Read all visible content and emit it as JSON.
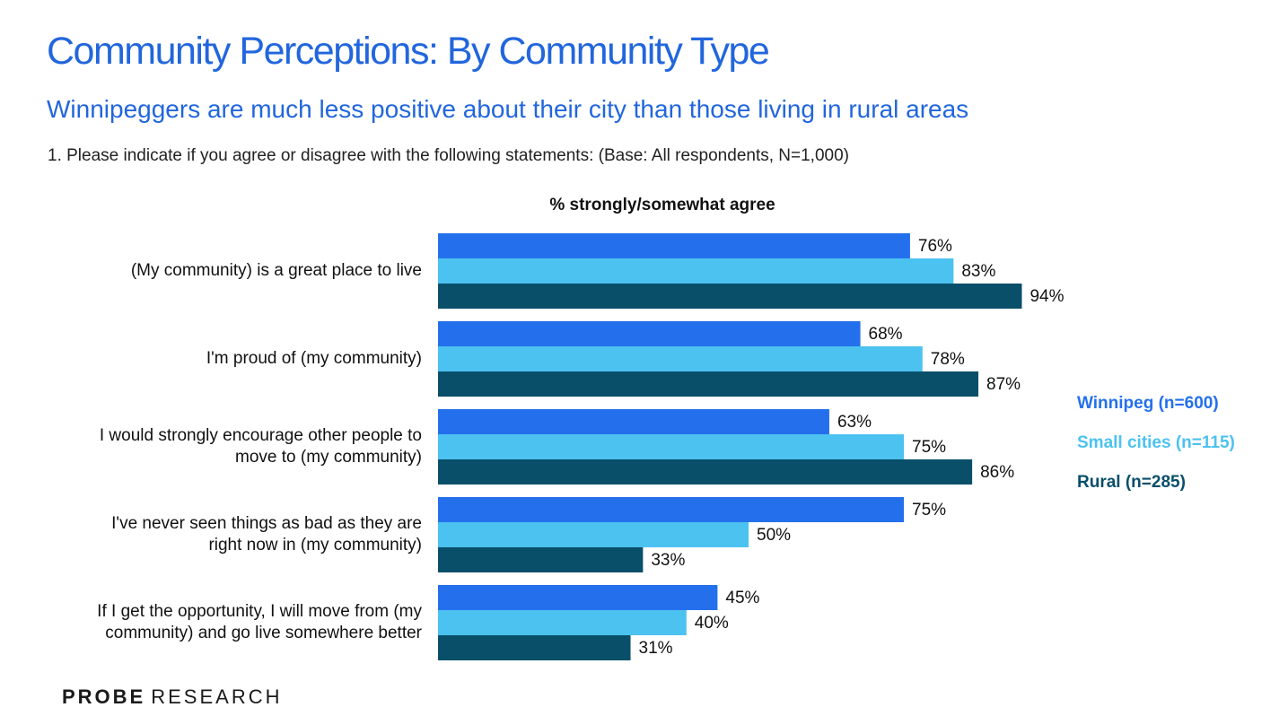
{
  "header": {
    "title": "Community Perceptions: By Community Type",
    "subtitle": "Winnipeggers are much less positive about their city than those living in rural areas",
    "question": "1. Please indicate if you agree or disagree with the following statements: (Base: All respondents, N=1,000)"
  },
  "colors": {
    "title": "#2266dd",
    "winnipeg": "#2470ec",
    "small_cities": "#4cc2f0",
    "rural": "#094f6a"
  },
  "chart_data": {
    "type": "bar",
    "orientation": "horizontal",
    "title": "% strongly/somewhat agree",
    "categories": [
      [
        "(My community) is a great place to live"
      ],
      [
        "I'm proud of (my community)"
      ],
      [
        "I would strongly encourage other people to",
        "move to (my community)"
      ],
      [
        "I've never seen things as bad as they are",
        "right now in (my community)"
      ],
      [
        "If I get the opportunity, I will move from (my",
        "community) and go live somewhere better"
      ]
    ],
    "series": [
      {
        "name": "Winnipeg (n=600)",
        "values": [
          76,
          68,
          63,
          75,
          45
        ],
        "labels": [
          "76%",
          "68%",
          "63%",
          "75%",
          "45%"
        ]
      },
      {
        "name": "Small cities (n=115)",
        "values": [
          83,
          78,
          75,
          50,
          40
        ],
        "labels": [
          "83%",
          "78%",
          "75%",
          "50%",
          "40%"
        ]
      },
      {
        "name": "Rural (n=285)",
        "values": [
          94,
          87,
          86,
          33,
          31
        ],
        "labels": [
          "94%",
          "87%",
          "86%",
          "33%",
          "31%"
        ]
      }
    ],
    "xlim": [
      0,
      100
    ],
    "grid": false,
    "legend_position": "right"
  },
  "logo": {
    "strong": "PROBE",
    "light": "RESEARCH"
  }
}
